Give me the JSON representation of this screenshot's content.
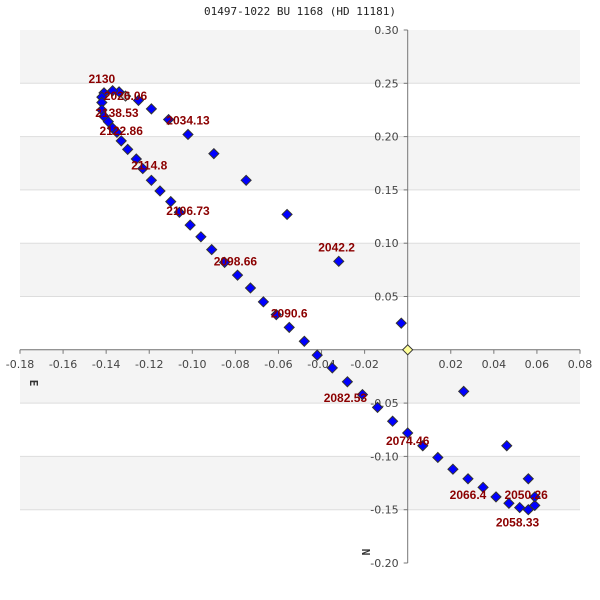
{
  "chart_data": {
    "type": "scatter",
    "title": "01497-1022 BU 1168 (HD 11181)",
    "xlabel": "E",
    "ylabel": "N",
    "xlim": [
      -0.18,
      0.08
    ],
    "ylim": [
      -0.2,
      0.3
    ],
    "x_ticks": [
      "-0.18",
      "-0.16",
      "-0.14",
      "-0.12",
      "-0.10",
      "-0.08",
      "-0.06",
      "-0.04",
      "-0.02",
      "0.02",
      "0.04",
      "0.06",
      "0.08"
    ],
    "x_tick_values": [
      -0.18,
      -0.16,
      -0.14,
      -0.12,
      -0.1,
      -0.08,
      -0.06,
      -0.04,
      -0.02,
      0.02,
      0.04,
      0.06,
      0.08
    ],
    "y_ticks": [
      "0.30",
      "0.25",
      "0.20",
      "0.15",
      "0.10",
      "0.05",
      "-0.05",
      "-0.10",
      "-0.15",
      "-0.20"
    ],
    "y_tick_values": [
      0.3,
      0.25,
      0.2,
      0.15,
      0.1,
      0.05,
      -0.05,
      -0.1,
      -0.15,
      -0.2
    ],
    "grid": true,
    "colors": {
      "points": "#0000ff",
      "start_point": "#cccccc",
      "primary": "#ffff99",
      "labels": "#8b0000",
      "band": "#f4f4f4"
    },
    "start_point": {
      "x": -0.131,
      "y": 0.238
    },
    "primary": {
      "x": 0,
      "y": 0
    },
    "points": [
      [
        -0.134,
        0.242
      ],
      [
        -0.137,
        0.243
      ],
      [
        -0.141,
        0.241
      ],
      [
        -0.142,
        0.237
      ],
      [
        -0.142,
        0.232
      ],
      [
        -0.142,
        0.225
      ],
      [
        -0.141,
        0.219
      ],
      [
        -0.139,
        0.214
      ],
      [
        -0.137,
        0.208
      ],
      [
        -0.135,
        0.204
      ],
      [
        -0.133,
        0.196
      ],
      [
        -0.13,
        0.188
      ],
      [
        -0.126,
        0.179
      ],
      [
        -0.123,
        0.17
      ],
      [
        -0.119,
        0.159
      ],
      [
        -0.115,
        0.149
      ],
      [
        -0.11,
        0.139
      ],
      [
        -0.106,
        0.129
      ],
      [
        -0.101,
        0.117
      ],
      [
        -0.096,
        0.106
      ],
      [
        -0.091,
        0.094
      ],
      [
        -0.085,
        0.082
      ],
      [
        -0.079,
        0.07
      ],
      [
        -0.073,
        0.058
      ],
      [
        -0.067,
        0.045
      ],
      [
        -0.061,
        0.033
      ],
      [
        -0.055,
        0.021
      ],
      [
        -0.048,
        0.008
      ],
      [
        -0.042,
        -0.005
      ],
      [
        -0.035,
        -0.017
      ],
      [
        -0.028,
        -0.03
      ],
      [
        -0.021,
        -0.042
      ],
      [
        -0.014,
        -0.054
      ],
      [
        -0.007,
        -0.067
      ],
      [
        0.0,
        -0.078
      ],
      [
        0.007,
        -0.09
      ],
      [
        0.014,
        -0.101
      ],
      [
        0.021,
        -0.112
      ],
      [
        0.028,
        -0.121
      ],
      [
        0.035,
        -0.129
      ],
      [
        0.041,
        -0.138
      ],
      [
        0.047,
        -0.144
      ],
      [
        0.052,
        -0.148
      ],
      [
        0.056,
        -0.15
      ],
      [
        0.059,
        -0.146
      ],
      [
        0.059,
        -0.138
      ],
      [
        0.056,
        -0.121
      ],
      [
        0.046,
        -0.09
      ],
      [
        0.026,
        -0.039
      ],
      [
        -0.003,
        0.025
      ],
      [
        -0.032,
        0.083
      ],
      [
        -0.056,
        0.127
      ],
      [
        -0.075,
        0.159
      ],
      [
        -0.09,
        0.184
      ],
      [
        -0.102,
        0.202
      ],
      [
        -0.111,
        0.216
      ],
      [
        -0.119,
        0.226
      ],
      [
        -0.125,
        0.234
      ]
    ],
    "annotations": [
      {
        "text": "2130",
        "x": -0.142,
        "y": 0.254
      },
      {
        "text": "2026.06",
        "x": -0.131,
        "y": 0.251
      },
      {
        "text": "2138.53",
        "x": -0.135,
        "y": 0.237
      },
      {
        "text": "2122.86",
        "x": -0.133,
        "y": 0.209
      },
      {
        "text": "2034.13",
        "x": -0.102,
        "y": 0.215
      },
      {
        "text": "2114.8",
        "x": -0.12,
        "y": 0.173
      },
      {
        "text": "2106.73",
        "x": -0.102,
        "y": 0.13
      },
      {
        "text": "2098.66",
        "x": -0.08,
        "y": 0.083
      },
      {
        "text": "2090.6",
        "x": -0.055,
        "y": 0.034
      },
      {
        "text": "2042.2",
        "x": -0.033,
        "y": 0.096
      },
      {
        "text": "2082.53",
        "x": -0.028,
        "y": -0.045
      },
      {
        "text": "2074.46",
        "x": 0.0,
        "y": -0.093
      },
      {
        "text": "2066.4",
        "x": 0.028,
        "y": -0.136
      },
      {
        "text": "2050.26",
        "x": 0.055,
        "y": -0.136
      },
      {
        "text": "2058.33",
        "x": 0.051,
        "y": -0.162
      }
    ]
  }
}
